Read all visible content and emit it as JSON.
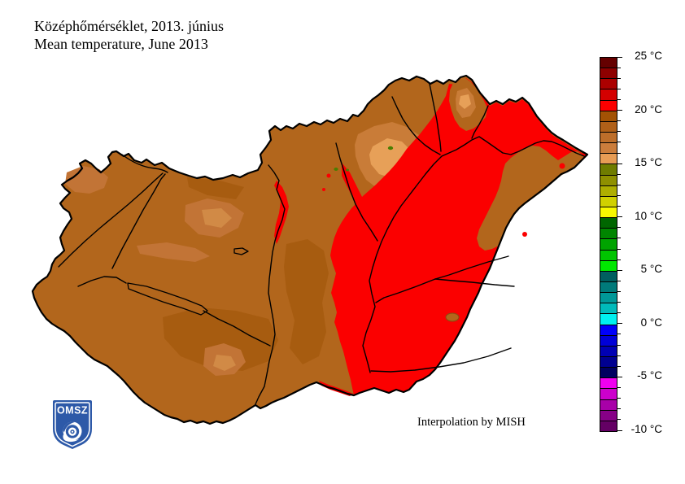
{
  "title": {
    "line1": "Középhőmérséklet, 2013. június",
    "line2": "Mean temperature, June 2013"
  },
  "map": {
    "credit": "Interpolation by MISH",
    "colors": {
      "base_brown": "#b2661c",
      "warm_red": "#fb0000",
      "tan": "#c97c38",
      "tan_light": "#e7a058",
      "tan_soft": "#c27436",
      "core_soft": "#d18a46",
      "dark_brown": "#a75c10",
      "green_spot": "#4a7e00",
      "outline": "#000000"
    }
  },
  "logo": {
    "text": "OMSZ",
    "blue": "#2d59a8"
  },
  "colorbar": {
    "unit": "°C",
    "max": 25,
    "min": -10,
    "label_every": 5,
    "tick_labels": [
      "25 °C",
      "20 °C",
      "15 °C",
      "10 °C",
      "5 °C",
      "0 °C",
      "-5 °C",
      "-10 °C"
    ],
    "segment_colors": [
      "#650000",
      "#8e0000",
      "#ab0000",
      "#d40000",
      "#fb0000",
      "#a35204",
      "#b06018",
      "#bd6e2a",
      "#cb7d3c",
      "#e79c55",
      "#6f7c00",
      "#8f9000",
      "#aeae00",
      "#d0d000",
      "#f8f800",
      "#006600",
      "#008500",
      "#00a300",
      "#00c400",
      "#00e800",
      "#005f5f",
      "#007a7a",
      "#009898",
      "#00baba",
      "#00f0f0",
      "#0000fa",
      "#0000d8",
      "#0000b4",
      "#000090",
      "#000060",
      "#f000f0",
      "#cc00cc",
      "#a800a8",
      "#860086",
      "#640064"
    ]
  }
}
